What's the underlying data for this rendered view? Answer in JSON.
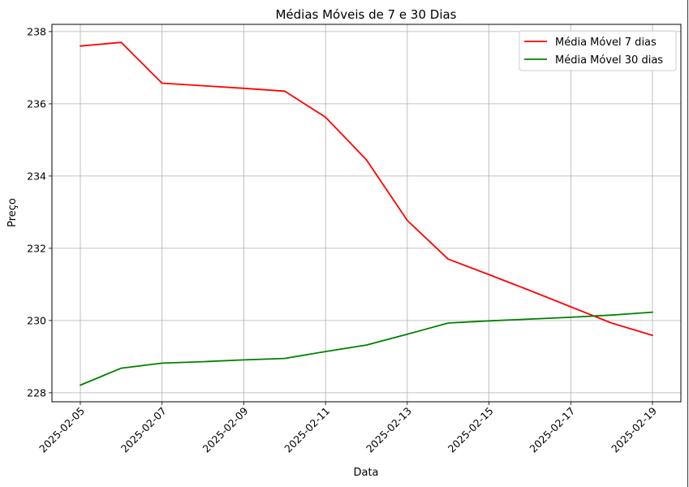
{
  "chart_data": {
    "type": "line",
    "title": "Médias Móveis de 7 e 30 Dias",
    "xlabel": "Data",
    "ylabel": "Preço",
    "x": [
      "2025-02-05",
      "2025-02-06",
      "2025-02-07",
      "2025-02-08",
      "2025-02-09",
      "2025-02-10",
      "2025-02-11",
      "2025-02-12",
      "2025-02-13",
      "2025-02-14",
      "2025-02-15",
      "2025-02-16",
      "2025-02-17",
      "2025-02-18",
      "2025-02-19"
    ],
    "x_ticks": [
      "2025-02-05",
      "2025-02-07",
      "2025-02-09",
      "2025-02-11",
      "2025-02-13",
      "2025-02-15",
      "2025-02-17",
      "2025-02-19"
    ],
    "y_ticks": [
      228,
      230,
      232,
      234,
      236,
      238
    ],
    "ylim": [
      227.75,
      238.2
    ],
    "grid": true,
    "legend_position": "top-right",
    "series": [
      {
        "name": "Média Móvel 7 dias",
        "color": "#ff0000",
        "values": [
          237.6,
          237.7,
          236.57,
          236.5,
          236.43,
          236.35,
          235.63,
          234.45,
          232.77,
          231.7,
          231.27,
          230.83,
          230.38,
          229.93,
          229.59
        ]
      },
      {
        "name": "Média Móvel 30 dias",
        "color": "#008000",
        "values": [
          228.21,
          228.68,
          228.82,
          228.86,
          228.91,
          228.95,
          229.14,
          229.32,
          229.62,
          229.93,
          229.99,
          230.04,
          230.09,
          230.15,
          230.23
        ]
      }
    ]
  }
}
